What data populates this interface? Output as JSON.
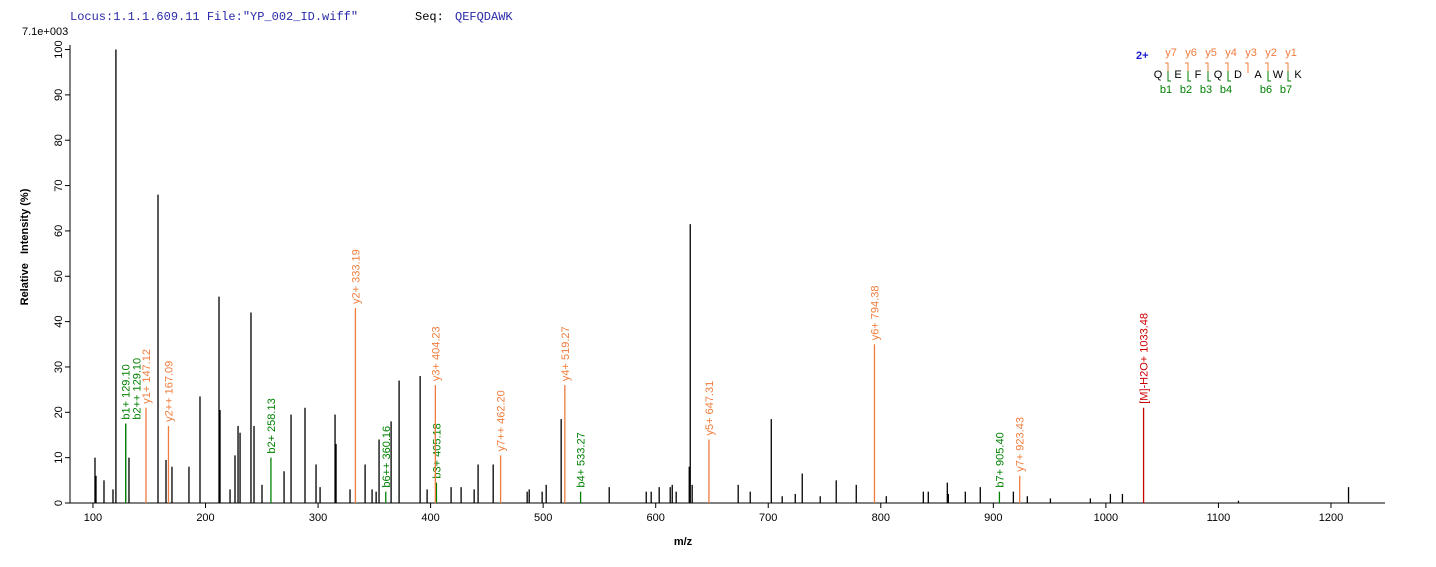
{
  "chart_data": {
    "type": "spectrum",
    "locus": "Locus:1.1.1.609.11 File:\"YP_002_ID.wiff\"",
    "seq_label": "Seq:",
    "sequence": "QEFQDAWK",
    "intensity_scale": "7.1e+003",
    "xlabel": "m/z",
    "ylabel": "Relative   Intensity (%)",
    "xlim": [
      79.6,
      1248
    ],
    "ylim": [
      0,
      101
    ],
    "xticks": [
      100,
      200,
      300,
      400,
      500,
      600,
      700,
      800,
      900,
      1000,
      1100,
      1200
    ],
    "yticks": [
      0,
      10,
      20,
      30,
      40,
      50,
      60,
      70,
      80,
      90,
      100
    ],
    "series": [
      {
        "color": "#000000",
        "x": [
          101.8,
          102.7,
          109.8,
          117.8,
          120.4,
          132,
          157.8,
          164.9,
          170.2,
          185.3,
          195.1,
          212,
          212.9,
          221.8,
          226.2,
          228.9,
          230.7,
          240.4,
          243.1,
          250.2,
          269.8,
          276,
          288.4,
          298.2,
          301.8,
          315.1,
          316,
          328.4,
          341.8,
          348,
          351.6,
          354.2,
          364.9,
          372,
          390.7,
          396.9,
          418.2,
          427.1,
          438.7,
          442.2,
          455.6,
          485.8,
          487.6,
          499.1,
          502.7,
          516,
          558.7,
          591.6,
          596,
          603.1,
          612.9,
          614.7,
          618.2,
          629.8,
          630.7,
          632.4,
          673.3,
          684,
          702.7,
          712.4,
          724,
          730.2,
          746.2,
          760.4,
          778.2,
          804.9,
          837.8,
          842.2,
          859.1,
          860,
          875.1,
          888.4,
          917.8,
          930.2,
          950.7,
          986.2,
          1004,
          1014.7,
          1117.8,
          1215.6
        ],
        "values": [
          10,
          6,
          5,
          3,
          100,
          10,
          68,
          9.5,
          8,
          8,
          23.5,
          45.5,
          20.5,
          3,
          10.5,
          17,
          15.5,
          42,
          17,
          4,
          7,
          19.5,
          21,
          8.5,
          3.5,
          19.5,
          13,
          3,
          8.5,
          3,
          2.5,
          14,
          18,
          27,
          28,
          3,
          3.5,
          3.5,
          3,
          8.5,
          8.5,
          2.5,
          3,
          2.5,
          4,
          18.5,
          3.5,
          2.5,
          2.5,
          3.5,
          3.5,
          4,
          2.5,
          8,
          61.5,
          4,
          4,
          2.5,
          18.5,
          1.5,
          2,
          6.5,
          1.5,
          5,
          4,
          1.5,
          2.5,
          2.5,
          4.5,
          2,
          2.5,
          3.5,
          2.5,
          1.5,
          1,
          1,
          2,
          2,
          0.5,
          3.5
        ]
      },
      {
        "color": "#008000",
        "x": [
          129.1,
          129.1,
          258.13,
          360.16,
          405.18,
          533.27,
          905.4
        ],
        "values": [
          17.5,
          17.5,
          10,
          2.5,
          4.5,
          2.5,
          2.5
        ],
        "labels": [
          "b1+ 129.10",
          "b2++ 129.10",
          "b2+ 258.13",
          "b6++ 360.16",
          "b3+ 405.18",
          "b4+ 533.27",
          "b7+ 905.40"
        ]
      },
      {
        "color": "#f07c3c",
        "x": [
          147.12,
          167.09,
          333.19,
          404.23,
          462.2,
          519.27,
          647.31,
          794.38,
          923.43
        ],
        "values": [
          21,
          17,
          43,
          26,
          10.5,
          26,
          14,
          35,
          6
        ],
        "labels": [
          "y1+ 147.12",
          "y2++ 167.09",
          "y2+ 333.19",
          "y3+ 404.23",
          "y7++ 462.20",
          "y4+ 519.27",
          "y5+ 647.31",
          "y6+ 794.38",
          "y7+ 923.43"
        ]
      },
      {
        "color": "#cc0000",
        "x": [
          1033.48
        ],
        "values": [
          21
        ],
        "labels": [
          "[M]-H2O+ 1033.48"
        ]
      }
    ],
    "sequence_annotation": {
      "charge": "2+",
      "residues": [
        "Q",
        "E",
        "F",
        "Q",
        "D",
        "A",
        "W",
        "K"
      ],
      "y_ions": [
        "y7",
        "y6",
        "y5",
        "y4",
        "y3",
        "y2",
        "y1"
      ],
      "b_ions": [
        "b1",
        "b2",
        "b3",
        "b4",
        null,
        "b6",
        "b7"
      ]
    }
  }
}
